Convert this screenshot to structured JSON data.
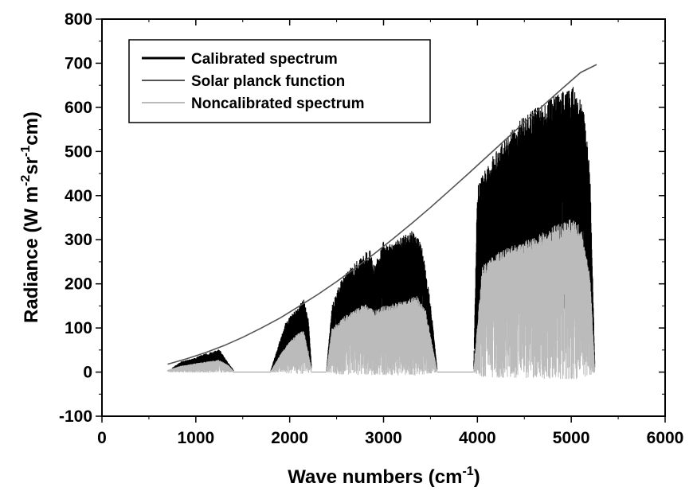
{
  "chart_data": {
    "type": "line",
    "xlabel_main": "Wave numbers (cm",
    "xlabel_sup": "-1",
    "xlabel_end": ")",
    "ylabel_parts": [
      "Radiance (W m",
      "-2",
      "sr",
      "-1",
      "cm)"
    ],
    "xlim": [
      0,
      6000
    ],
    "ylim": [
      -100,
      800
    ],
    "x_ticks": [
      0,
      1000,
      2000,
      3000,
      4000,
      5000,
      6000
    ],
    "y_ticks": [
      -100,
      0,
      100,
      200,
      300,
      400,
      500,
      600,
      700,
      800
    ],
    "legend_position": "top-left",
    "series": [
      {
        "name": "Calibrated spectrum",
        "color": "#000000",
        "bands": [
          {
            "x_start": 750,
            "x_end": 1400,
            "envelope": [
              [
                750,
                10
              ],
              [
                850,
                25
              ],
              [
                950,
                30
              ],
              [
                1050,
                38
              ],
              [
                1150,
                45
              ],
              [
                1250,
                52
              ],
              [
                1300,
                35
              ],
              [
                1350,
                20
              ],
              [
                1400,
                5
              ]
            ]
          },
          {
            "x_start": 1800,
            "x_end": 2230,
            "envelope": [
              [
                1800,
                5
              ],
              [
                1850,
                40
              ],
              [
                1950,
                110
              ],
              [
                2050,
                140
              ],
              [
                2150,
                165
              ],
              [
                2200,
                120
              ],
              [
                2230,
                20
              ]
            ]
          },
          {
            "x_start": 2390,
            "x_end": 3570,
            "envelope": [
              [
                2390,
                0
              ],
              [
                2450,
                150
              ],
              [
                2550,
                210
              ],
              [
                2700,
                250
              ],
              [
                2850,
                280
              ],
              [
                2900,
                240
              ],
              [
                3000,
                300
              ],
              [
                3100,
                290
              ],
              [
                3200,
                310
              ],
              [
                3300,
                320
              ],
              [
                3400,
                300
              ],
              [
                3500,
                160
              ],
              [
                3570,
                10
              ]
            ]
          },
          {
            "x_start": 3960,
            "x_end": 5250,
            "envelope": [
              [
                3960,
                0
              ],
              [
                4000,
                420
              ],
              [
                4100,
                470
              ],
              [
                4250,
                520
              ],
              [
                4400,
                560
              ],
              [
                4550,
                590
              ],
              [
                4700,
                610
              ],
              [
                4800,
                625
              ],
              [
                4950,
                640
              ],
              [
                5050,
                650
              ],
              [
                5150,
                580
              ],
              [
                5200,
                450
              ],
              [
                5250,
                30
              ]
            ]
          }
        ]
      },
      {
        "name": "Solar planck function",
        "color": "#555555",
        "x": [
          700,
          900,
          1100,
          1300,
          1500,
          1700,
          1900,
          2100,
          2300,
          2500,
          2700,
          2900,
          3100,
          3300,
          3500,
          3700,
          3900,
          4100,
          4300,
          4500,
          4700,
          4900,
          5100,
          5270
        ],
        "y": [
          18,
          30,
          44,
          60,
          79,
          100,
          123,
          149,
          176,
          205,
          236,
          268,
          302,
          337,
          373,
          411,
          449,
          488,
          527,
          566,
          604,
          642,
          679,
          697
        ]
      },
      {
        "name": "Noncalibrated spectrum",
        "color": "#bbbbbb",
        "bands": [
          {
            "x_start": 700,
            "x_end": 1400,
            "envelope": [
              [
                700,
                5
              ],
              [
                850,
                15
              ],
              [
                1000,
                20
              ],
              [
                1150,
                25
              ],
              [
                1250,
                28
              ],
              [
                1350,
                15
              ],
              [
                1400,
                3
              ]
            ]
          },
          {
            "x_start": 1800,
            "x_end": 2230,
            "envelope": [
              [
                1800,
                3
              ],
              [
                1900,
                40
              ],
              [
                2000,
                70
              ],
              [
                2100,
                90
              ],
              [
                2150,
                95
              ],
              [
                2230,
                10
              ]
            ]
          },
          {
            "x_start": 2390,
            "x_end": 3570,
            "envelope": [
              [
                2390,
                0
              ],
              [
                2450,
                100
              ],
              [
                2600,
                130
              ],
              [
                2800,
                155
              ],
              [
                2900,
                140
              ],
              [
                3000,
                150
              ],
              [
                3200,
                160
              ],
              [
                3350,
                175
              ],
              [
                3450,
                140
              ],
              [
                3570,
                5
              ]
            ]
          },
          {
            "x_start": 3960,
            "x_end": 5250,
            "envelope": [
              [
                3960,
                0
              ],
              [
                4050,
                240
              ],
              [
                4200,
                270
              ],
              [
                4400,
                290
              ],
              [
                4600,
                305
              ],
              [
                4800,
                330
              ],
              [
                5000,
                350
              ],
              [
                5100,
                330
              ],
              [
                5200,
                220
              ],
              [
                5250,
                10
              ]
            ]
          }
        ]
      }
    ]
  }
}
